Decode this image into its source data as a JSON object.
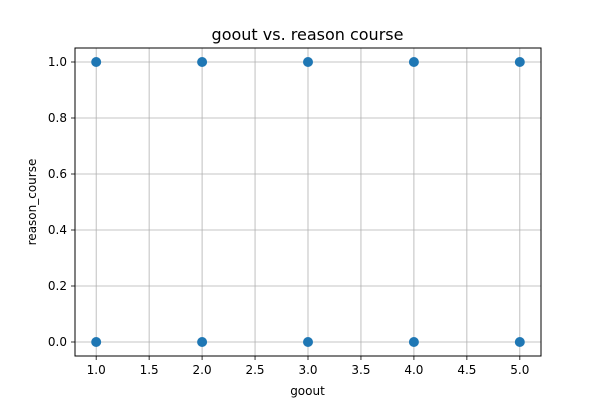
{
  "chart_data": {
    "type": "scatter",
    "title": "goout vs. reason course",
    "xlabel": "goout",
    "ylabel": "reason_course",
    "xlim": [
      0.8,
      5.2
    ],
    "ylim": [
      -0.05,
      1.05
    ],
    "xticks": [
      1.0,
      1.5,
      2.0,
      2.5,
      3.0,
      3.5,
      4.0,
      4.5,
      5.0
    ],
    "xtick_labels": [
      "1.0",
      "1.5",
      "2.0",
      "2.5",
      "3.0",
      "3.5",
      "4.0",
      "4.5",
      "5.0"
    ],
    "yticks": [
      0.0,
      0.2,
      0.4,
      0.6,
      0.8,
      1.0
    ],
    "ytick_labels": [
      "0.0",
      "0.2",
      "0.4",
      "0.6",
      "0.8",
      "1.0"
    ],
    "grid": true,
    "series": [
      {
        "name": "reason_course",
        "color": "#1f77b4",
        "points": [
          {
            "x": 1,
            "y": 1
          },
          {
            "x": 2,
            "y": 1
          },
          {
            "x": 3,
            "y": 1
          },
          {
            "x": 4,
            "y": 1
          },
          {
            "x": 5,
            "y": 1
          },
          {
            "x": 1,
            "y": 0
          },
          {
            "x": 2,
            "y": 0
          },
          {
            "x": 3,
            "y": 0
          },
          {
            "x": 4,
            "y": 0
          },
          {
            "x": 5,
            "y": 0
          }
        ]
      }
    ]
  }
}
